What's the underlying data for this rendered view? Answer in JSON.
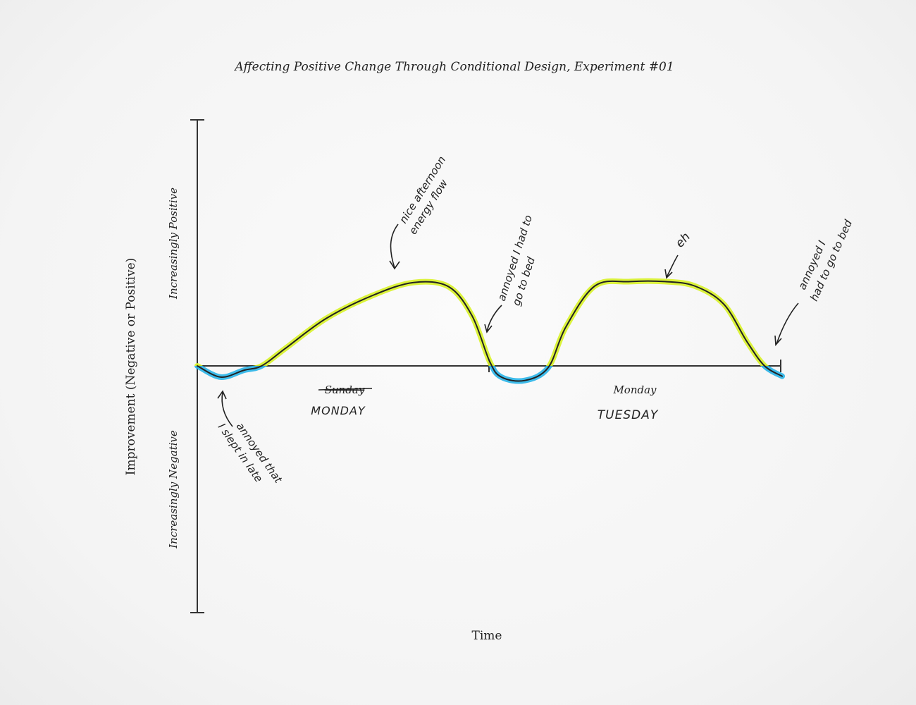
{
  "chart_data": {
    "type": "line",
    "title": "Affecting Positive Change Through Conditional Design, Experiment #01",
    "xlabel": "Time",
    "ylabel": "Improvement (Negative or Positive)",
    "y_top_label": "Increasingly Positive",
    "y_bottom_label": "Increasingly Negative",
    "grid": false,
    "day_labels": [
      {
        "printed": "Sunday",
        "struck_through": true,
        "handwritten": "MONDAY"
      },
      {
        "printed": "Monday",
        "struck_through": false,
        "handwritten": "TUESDAY"
      }
    ],
    "series": [
      {
        "x": [
          0,
          0.04,
          0.08,
          0.11,
          0.15,
          0.22,
          0.3,
          0.37,
          0.43,
          0.47,
          0.5,
          0.52,
          0.56,
          0.6,
          0.63,
          0.68,
          0.74,
          0.8,
          0.85,
          0.9,
          0.94,
          0.97,
          1
        ],
        "values": [
          0,
          -0.13,
          -0.05,
          0,
          0.2,
          0.55,
          0.82,
          0.97,
          0.92,
          0.58,
          0.05,
          -0.13,
          -0.17,
          -0.02,
          0.45,
          0.93,
          0.98,
          0.98,
          0.93,
          0.72,
          0.28,
          0,
          -0.12
        ],
        "positive_color": "#d8f227",
        "negative_color": "#28b4e8",
        "line_color": "#222222"
      }
    ],
    "annotations": [
      {
        "text_lines": [
          "nice afternoon",
          "energy flow"
        ],
        "x": 0.33,
        "y": 0.97
      },
      {
        "text_lines": [
          "annoyed I had to",
          "go to bed"
        ],
        "x": 0.49,
        "y": 0.35
      },
      {
        "text_lines": [
          "eh"
        ],
        "x": 0.8,
        "y": 0.98
      },
      {
        "text_lines": [
          "annoyed I",
          "had to go to bed"
        ],
        "x": 0.98,
        "y": 0.22
      },
      {
        "text_lines": [
          "annoyed that",
          "I slept in late"
        ],
        "x": 0.05,
        "y": -0.2
      }
    ]
  }
}
